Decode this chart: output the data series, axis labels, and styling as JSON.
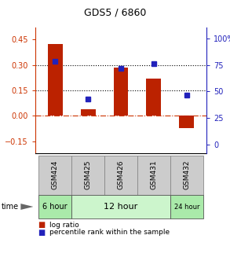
{
  "title": "GDS5 / 6860",
  "samples": [
    "GSM424",
    "GSM425",
    "GSM426",
    "GSM431",
    "GSM432"
  ],
  "log_ratio": [
    0.425,
    0.04,
    0.285,
    0.22,
    -0.07
  ],
  "percentile_rank": [
    78,
    43,
    72,
    76,
    47
  ],
  "bar_color": "#bb2200",
  "dot_color": "#2222bb",
  "left_tick_color": "#cc3300",
  "right_tick_color": "#2222bb",
  "ylim_left": [
    -0.22,
    0.52
  ],
  "ylim_right": [
    -7.857142857142857,
    110
  ],
  "yticks_left": [
    -0.15,
    0,
    0.15,
    0.3,
    0.45
  ],
  "yticks_right": [
    0,
    25,
    50,
    75,
    100
  ],
  "hline_positions": [
    0.15,
    0.3
  ],
  "plot_bg_color": "#ffffff",
  "sample_box_color": "#cccccc",
  "sample_box_edge": "#888888",
  "time_spans": [
    {
      "label": "6 hour",
      "start": 0,
      "end": 0,
      "color": "#aaeaaa",
      "fontsize": 7
    },
    {
      "label": "12 hour",
      "start": 1,
      "end": 3,
      "color": "#ccf5cc",
      "fontsize": 8
    },
    {
      "label": "24 hour",
      "start": 4,
      "end": 4,
      "color": "#aaeaaa",
      "fontsize": 6
    }
  ],
  "legend_items": [
    {
      "color": "#bb2200",
      "label": "log ratio"
    },
    {
      "color": "#2222bb",
      "label": "percentile rank within the sample"
    }
  ],
  "bar_width": 0.45
}
